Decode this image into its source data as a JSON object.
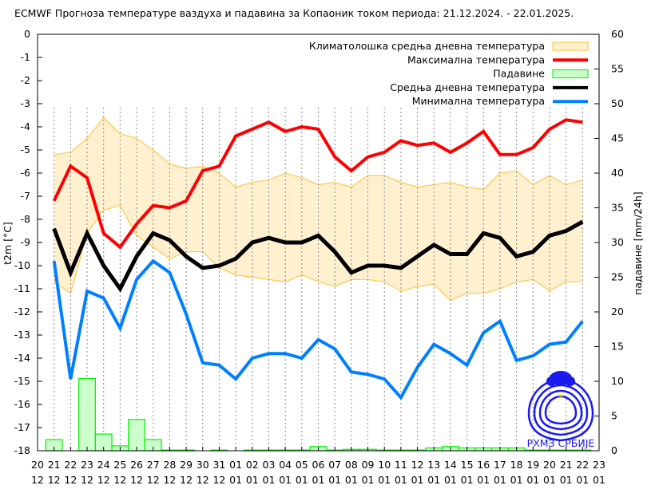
{
  "chart_data": {
    "type": "line",
    "title": "ECMWF Прогноза температуре ваздуха и падавина за Копаоник током периода: 21.12.2024. - 22.01.2025.",
    "ylabel": "t2m [°C]",
    "y2label": "падавине [mm/24h]",
    "ylim": [
      -18,
      0
    ],
    "y2lim": [
      0,
      60
    ],
    "grid": "vertical dashed",
    "legend": "top-right",
    "xtick_labels": [
      [
        "20",
        "12"
      ],
      [
        "21",
        "12"
      ],
      [
        "22",
        "12"
      ],
      [
        "23",
        "12"
      ],
      [
        "24",
        "12"
      ],
      [
        "25",
        "12"
      ],
      [
        "26",
        "12"
      ],
      [
        "27",
        "12"
      ],
      [
        "28",
        "12"
      ],
      [
        "29",
        "12"
      ],
      [
        "30",
        "12"
      ],
      [
        "31",
        "12"
      ],
      [
        "01",
        "01"
      ],
      [
        "02",
        "01"
      ],
      [
        "03",
        "01"
      ],
      [
        "04",
        "01"
      ],
      [
        "05",
        "01"
      ],
      [
        "06",
        "01"
      ],
      [
        "07",
        "01"
      ],
      [
        "08",
        "01"
      ],
      [
        "09",
        "01"
      ],
      [
        "10",
        "01"
      ],
      [
        "11",
        "01"
      ],
      [
        "12",
        "01"
      ],
      [
        "13",
        "01"
      ],
      [
        "14",
        "01"
      ],
      [
        "15",
        "01"
      ],
      [
        "16",
        "01"
      ],
      [
        "17",
        "01"
      ],
      [
        "18",
        "01"
      ],
      [
        "19",
        "01"
      ],
      [
        "20",
        "01"
      ],
      [
        "21",
        "01"
      ],
      [
        "22",
        "01"
      ],
      [
        "23",
        "01"
      ]
    ],
    "x": [
      "21.12",
      "22.12",
      "23.12",
      "24.12",
      "25.12",
      "26.12",
      "27.12",
      "28.12",
      "29.12",
      "30.12",
      "31.12",
      "01.01",
      "02.01",
      "03.01",
      "04.01",
      "05.01",
      "06.01",
      "07.01",
      "08.01",
      "09.01",
      "10.01",
      "11.01",
      "12.01",
      "13.01",
      "14.01",
      "15.01",
      "16.01",
      "17.01",
      "18.01",
      "19.01",
      "20.01",
      "21.01",
      "22.01"
    ],
    "climate_band": {
      "name": "Климатолошка средња дневна температура",
      "color": "#fff0d0",
      "edge": "#ffc030",
      "upper": [
        -5.2,
        -5.1,
        -4.5,
        -3.6,
        -4.3,
        -4.5,
        -5.0,
        -5.6,
        -5.8,
        -5.7,
        -6.0,
        -6.6,
        -6.4,
        -6.3,
        -6.0,
        -6.2,
        -6.5,
        -6.4,
        -6.6,
        -6.1,
        -6.1,
        -6.4,
        -6.6,
        -6.5,
        -6.4,
        -6.6,
        -6.7,
        -6.0,
        -5.9,
        -6.5,
        -6.1,
        -6.5,
        -6.3
      ],
      "lower": [
        -10.7,
        -11.2,
        -8.6,
        -7.6,
        -7.4,
        -8.7,
        -9.2,
        -9.7,
        -9.4,
        -9.4,
        -10.1,
        -10.4,
        -10.5,
        -10.6,
        -10.7,
        -10.4,
        -10.7,
        -10.9,
        -10.6,
        -10.6,
        -10.7,
        -11.1,
        -10.9,
        -10.8,
        -11.5,
        -11.2,
        -11.2,
        -11.0,
        -10.7,
        -10.6,
        -11.1,
        -10.7,
        -10.7
      ]
    },
    "precipitation": {
      "name": "Падавине",
      "color": "#ccffcc",
      "edge": "#00ee00",
      "values": [
        1.6,
        0,
        10.4,
        2.4,
        0.7,
        4.5,
        1.6,
        0.1,
        0.1,
        0,
        0.1,
        0,
        0.1,
        0.1,
        0.1,
        0.1,
        0.6,
        0.1,
        0.2,
        0.2,
        0.1,
        0.1,
        0.1,
        0.4,
        0.6,
        0.4,
        0.4,
        0.4,
        0.4,
        0.1,
        0.1,
        0.1,
        0.1
      ]
    },
    "series": [
      {
        "name": "Максимална температура",
        "color": "#ff0000",
        "values": [
          -7.2,
          -5.7,
          -6.2,
          -8.6,
          -9.2,
          -8.2,
          -7.4,
          -7.5,
          -7.2,
          -5.9,
          -5.7,
          -4.4,
          -4.1,
          -3.8,
          -4.2,
          -4.0,
          -4.1,
          -5.3,
          -5.9,
          -5.3,
          -5.1,
          -4.6,
          -4.8,
          -4.7,
          -5.1,
          -4.7,
          -4.2,
          -5.2,
          -5.2,
          -4.9,
          -4.1,
          -3.7,
          -3.8
        ]
      },
      {
        "name": "Средња дневна температура",
        "color": "#000000",
        "values": [
          -8.4,
          -10.3,
          -8.6,
          -10.0,
          -11.0,
          -9.6,
          -8.6,
          -8.9,
          -9.6,
          -10.1,
          -10.0,
          -9.7,
          -9.0,
          -8.8,
          -9.0,
          -9.0,
          -8.7,
          -9.4,
          -10.3,
          -10.0,
          -10.0,
          -10.1,
          -9.6,
          -9.1,
          -9.5,
          -9.5,
          -8.6,
          -8.8,
          -9.6,
          -9.4,
          -8.7,
          -8.5,
          -8.1
        ]
      },
      {
        "name": "Минимална температура",
        "color": "#0080ff",
        "values": [
          -9.8,
          -14.9,
          -11.1,
          -11.4,
          -12.7,
          -10.6,
          -9.8,
          -10.3,
          -12.1,
          -14.2,
          -14.3,
          -14.9,
          -14.0,
          -13.8,
          -13.8,
          -14.0,
          -13.2,
          -13.6,
          -14.6,
          -14.7,
          -14.9,
          -15.7,
          -14.4,
          -13.4,
          -13.8,
          -14.3,
          -12.9,
          -12.4,
          -14.1,
          -13.9,
          -13.4,
          -13.3,
          -12.4
        ]
      }
    ],
    "yticks": [
      0,
      -1,
      -2,
      -3,
      -4,
      -5,
      -6,
      -7,
      -8,
      -9,
      -10,
      -11,
      -12,
      -13,
      -14,
      -15,
      -16,
      -17,
      -18
    ],
    "y2ticks": [
      0,
      5,
      10,
      15,
      20,
      25,
      30,
      35,
      40,
      45,
      50,
      55,
      60
    ],
    "logo": {
      "name": "RHMZ logo",
      "text": "РХМЗ СРБИЈЕ"
    }
  }
}
